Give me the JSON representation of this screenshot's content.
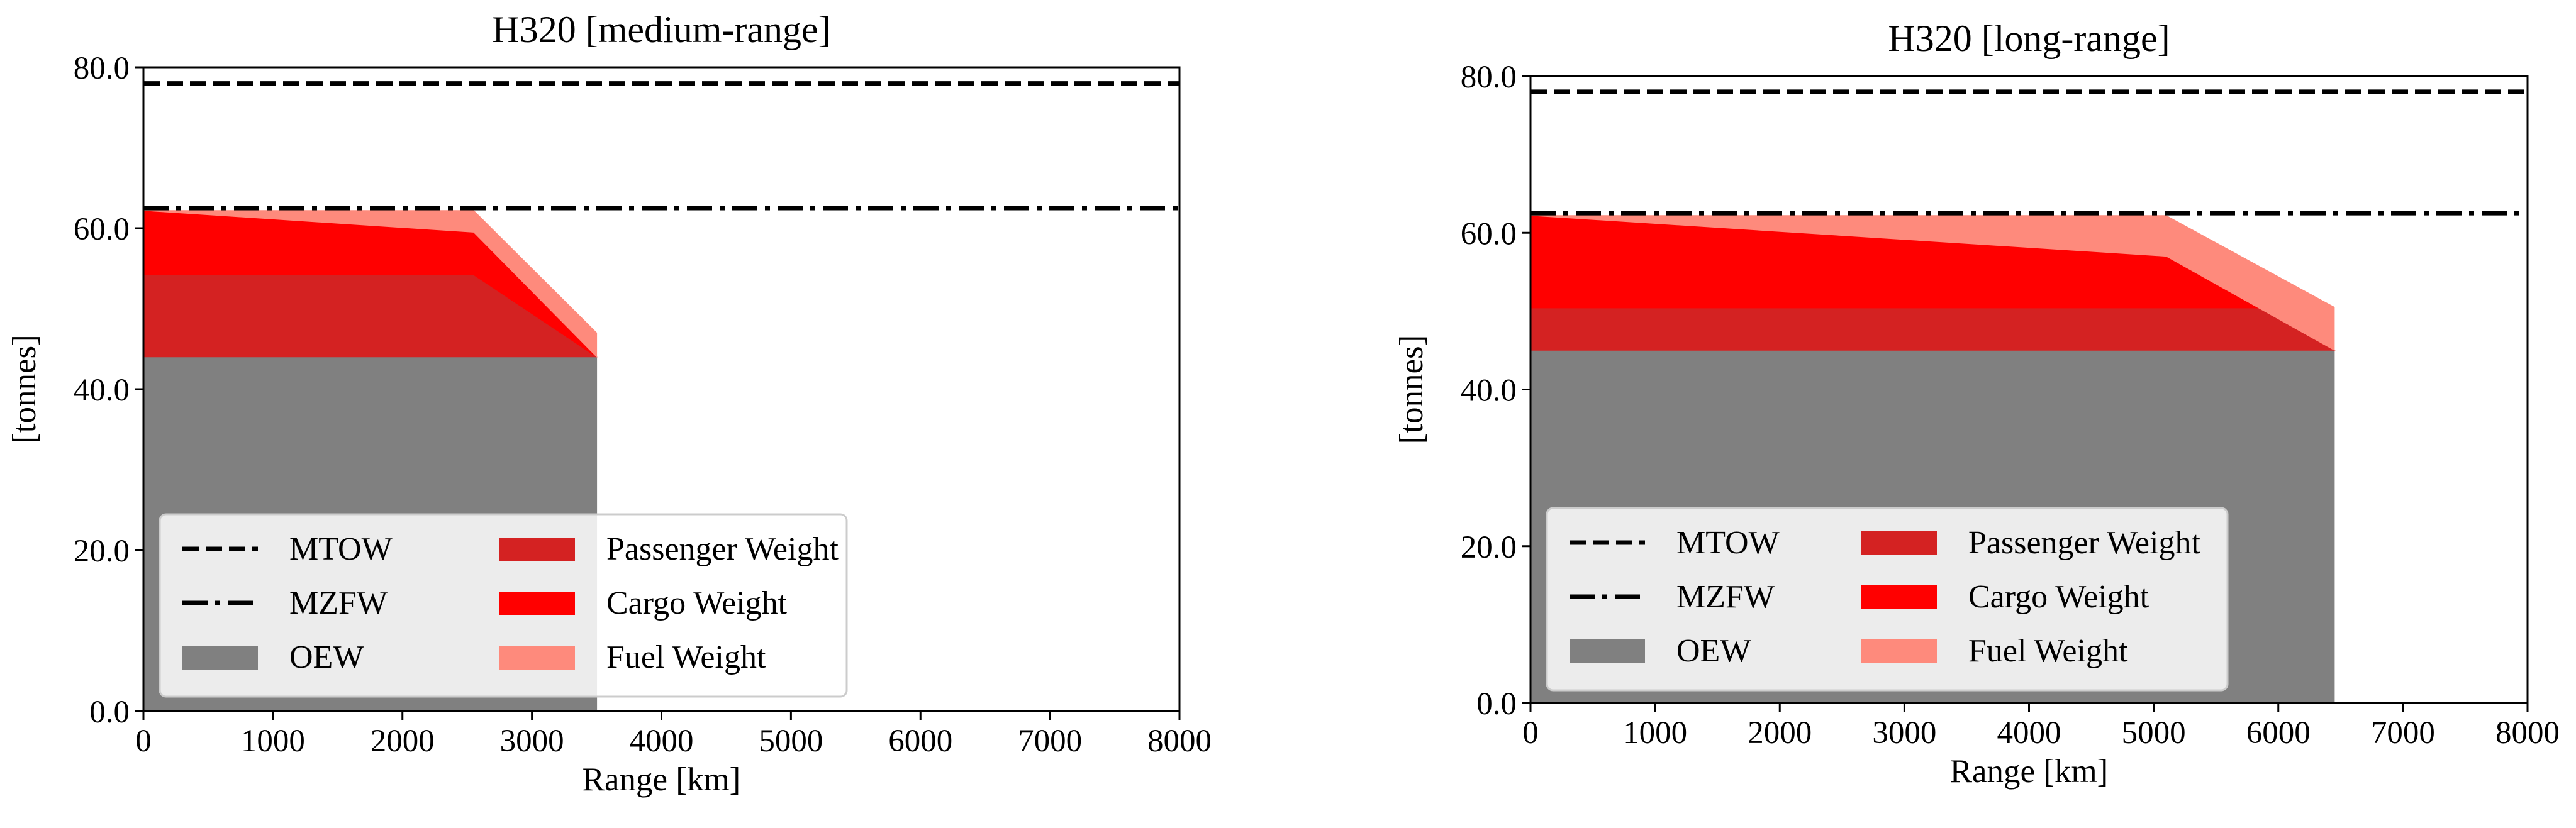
{
  "chart_data": [
    {
      "type": "area",
      "title": "H320 [medium-range]",
      "xlabel": "Range [km]",
      "ylabel": "[tonnes]",
      "xlim": [
        0,
        8000
      ],
      "ylim": [
        0,
        80
      ],
      "xticks": [
        0,
        1000,
        2000,
        3000,
        4000,
        5000,
        6000,
        7000,
        8000
      ],
      "yticks": [
        0,
        20,
        40,
        60,
        80
      ],
      "ytick_labels": [
        "0.0",
        "20.0",
        "40.0",
        "60.0",
        "80.0"
      ],
      "grid": false,
      "legend_position": "lower-left",
      "legend": [
        {
          "name": "MTOW",
          "kind": "dashed-line",
          "color": "#000000"
        },
        {
          "name": "Passenger Weight",
          "kind": "patch",
          "color": "#d42222"
        },
        {
          "name": "MZFW",
          "kind": "dashdot-line",
          "color": "#000000"
        },
        {
          "name": "Cargo Weight",
          "kind": "patch",
          "color": "#ff0000"
        },
        {
          "name": "OEW",
          "kind": "patch",
          "color": "#808080"
        },
        {
          "name": "Fuel Weight",
          "kind": "patch",
          "color": "#fe8a7c"
        }
      ],
      "reference_lines": [
        {
          "name": "MTOW",
          "y": 78,
          "style": "dashed"
        },
        {
          "name": "MZFW",
          "y": 62.5,
          "style": "dashdot"
        }
      ],
      "series": [
        {
          "name": "OEW",
          "x": [
            0,
            3500
          ],
          "y_lower": [
            0,
            0
          ],
          "y_upper": [
            44,
            44
          ],
          "color": "#808080"
        },
        {
          "name": "Passenger Weight",
          "x": [
            0,
            2800,
            3500
          ],
          "y_lower": [
            44,
            44,
            44
          ],
          "y_upper": [
            54.2,
            54.2,
            44
          ],
          "color": "#d42222"
        },
        {
          "name": "Cargo Weight",
          "x": [
            0,
            2550,
            3500
          ],
          "y_lower": [
            54.2,
            54.2,
            44
          ],
          "y_upper": [
            62.2,
            59.5,
            44
          ],
          "color": "#ff0000"
        },
        {
          "name": "Fuel Weight",
          "x": [
            0,
            2550,
            3500
          ],
          "y_lower": [
            62.2,
            59.5,
            44
          ],
          "y_upper": [
            62.2,
            62.2,
            47
          ],
          "color": "#fe8a7c"
        }
      ]
    },
    {
      "type": "area",
      "title": "H320 [long-range]",
      "xlabel": "Range [km]",
      "ylabel": "[tonnes]",
      "xlim": [
        0,
        8000
      ],
      "ylim": [
        0,
        80
      ],
      "xticks": [
        0,
        1000,
        2000,
        3000,
        4000,
        5000,
        6000,
        7000,
        8000
      ],
      "yticks": [
        0,
        20,
        40,
        60,
        80
      ],
      "ytick_labels": [
        "0.0",
        "20.0",
        "40.0",
        "60.0",
        "80.0"
      ],
      "grid": false,
      "legend_position": "lower-left",
      "legend": [
        {
          "name": "MTOW",
          "kind": "dashed-line",
          "color": "#000000"
        },
        {
          "name": "Passenger Weight",
          "kind": "patch",
          "color": "#d42222"
        },
        {
          "name": "MZFW",
          "kind": "dashdot-line",
          "color": "#000000"
        },
        {
          "name": "Cargo Weight",
          "kind": "patch",
          "color": "#ff0000"
        },
        {
          "name": "OEW",
          "kind": "patch",
          "color": "#808080"
        },
        {
          "name": "Fuel Weight",
          "kind": "patch",
          "color": "#fe8a7c"
        }
      ],
      "reference_lines": [
        {
          "name": "MTOW",
          "y": 78,
          "style": "dashed"
        },
        {
          "name": "MZFW",
          "y": 62.5,
          "style": "dashdot"
        }
      ],
      "series": [
        {
          "name": "OEW",
          "x": [
            0,
            6450
          ],
          "y_lower": [
            0,
            0
          ],
          "y_upper": [
            45,
            45
          ],
          "color": "#808080"
        },
        {
          "name": "Passenger Weight",
          "x": [
            0,
            5850,
            6450
          ],
          "y_lower": [
            45,
            45,
            45
          ],
          "y_upper": [
            50.4,
            50.4,
            45
          ],
          "color": "#d42222"
        },
        {
          "name": "Cargo Weight",
          "x": [
            0,
            5100,
            5850,
            6450
          ],
          "y_lower": [
            50.4,
            50.4,
            50.4,
            45
          ],
          "y_upper": [
            62.2,
            57,
            50.4,
            45
          ],
          "color": "#ff0000"
        },
        {
          "name": "Fuel Weight",
          "x": [
            0,
            5100,
            6450
          ],
          "y_lower": [
            62.2,
            57,
            45
          ],
          "y_upper": [
            62.2,
            62.2,
            50.5
          ],
          "color": "#fe8a7c"
        }
      ]
    }
  ]
}
